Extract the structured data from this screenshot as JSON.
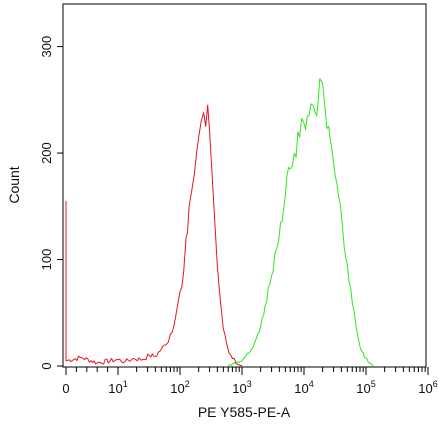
{
  "chart_data": {
    "type": "line",
    "title": "",
    "xlabel": "PE Y585-PE-A",
    "ylabel": "Count",
    "x_scale": "biexponential (log above 10^1)",
    "ylim": [
      0,
      330
    ],
    "yticks": [
      {
        "label": "0",
        "value": 0
      },
      {
        "label": "100",
        "value": 100
      },
      {
        "label": "200",
        "value": 200
      },
      {
        "label": "300",
        "value": 300
      }
    ],
    "xticks": [
      {
        "base": "0",
        "exp": "",
        "value": 0
      },
      {
        "base": "10",
        "exp": "1",
        "value": 10
      },
      {
        "base": "10",
        "exp": "2",
        "value": 100
      },
      {
        "base": "10",
        "exp": "3",
        "value": 1000
      },
      {
        "base": "10",
        "exp": "4",
        "value": 10000
      },
      {
        "base": "10",
        "exp": "5",
        "value": 100000
      },
      {
        "base": "10",
        "exp": "6",
        "value": 1000000
      }
    ],
    "grid": false,
    "series": [
      {
        "color": "#e8141c",
        "points": [
          [
            0,
            155
          ],
          [
            0,
            5
          ],
          [
            3,
            8
          ],
          [
            6,
            3
          ],
          [
            10,
            6
          ],
          [
            13,
            4
          ],
          [
            18,
            7
          ],
          [
            25,
            6
          ],
          [
            32,
            10
          ],
          [
            40,
            9
          ],
          [
            50,
            16
          ],
          [
            60,
            20
          ],
          [
            70,
            30
          ],
          [
            80,
            38
          ],
          [
            90,
            55
          ],
          [
            100,
            70
          ],
          [
            115,
            90
          ],
          [
            125,
            120
          ],
          [
            140,
            150
          ],
          [
            155,
            165
          ],
          [
            170,
            180
          ],
          [
            185,
            200
          ],
          [
            200,
            215
          ],
          [
            220,
            230
          ],
          [
            240,
            238
          ],
          [
            260,
            225
          ],
          [
            280,
            245
          ],
          [
            300,
            220
          ],
          [
            330,
            180
          ],
          [
            360,
            140
          ],
          [
            400,
            95
          ],
          [
            450,
            60
          ],
          [
            500,
            35
          ],
          [
            560,
            22
          ],
          [
            620,
            12
          ],
          [
            700,
            7
          ],
          [
            800,
            3
          ],
          [
            900,
            1
          ],
          [
            1000,
            0
          ]
        ]
      },
      {
        "color": "#2ee81c",
        "points": [
          [
            600,
            0
          ],
          [
            800,
            2
          ],
          [
            1000,
            5
          ],
          [
            1300,
            12
          ],
          [
            1600,
            22
          ],
          [
            2000,
            38
          ],
          [
            2500,
            60
          ],
          [
            3000,
            85
          ],
          [
            3600,
            110
          ],
          [
            4200,
            135
          ],
          [
            5000,
            160
          ],
          [
            6000,
            185
          ],
          [
            7000,
            200
          ],
          [
            8500,
            215
          ],
          [
            10000,
            228
          ],
          [
            12000,
            235
          ],
          [
            14000,
            245
          ],
          [
            16000,
            235
          ],
          [
            18000,
            270
          ],
          [
            20000,
            265
          ],
          [
            22000,
            240
          ],
          [
            25000,
            225
          ],
          [
            30000,
            190
          ],
          [
            36000,
            160
          ],
          [
            42000,
            130
          ],
          [
            50000,
            95
          ],
          [
            60000,
            60
          ],
          [
            70000,
            35
          ],
          [
            80000,
            18
          ],
          [
            95000,
            8
          ],
          [
            110000,
            3
          ],
          [
            130000,
            0
          ]
        ]
      }
    ]
  }
}
